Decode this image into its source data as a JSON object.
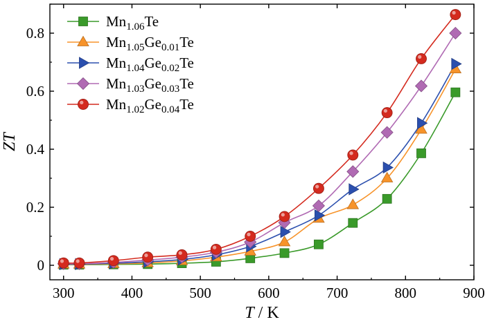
{
  "chart_data": {
    "type": "line",
    "xlabel": {
      "var": "T",
      "sep": " / ",
      "unit": "K"
    },
    "ylabel": "ZT",
    "xlim": [
      280,
      900
    ],
    "ylim": [
      -0.05,
      0.9
    ],
    "xticks": [
      300,
      400,
      500,
      600,
      700,
      800,
      900
    ],
    "yticks": [
      0,
      0.2,
      0.4,
      0.6,
      0.8
    ],
    "legend_position": "top-left",
    "grid": false,
    "series": [
      {
        "name": "Mn1.06Te",
        "name_parts": [
          [
            "Mn",
            "n"
          ],
          [
            "1.06",
            "s"
          ],
          [
            "Te",
            "n"
          ]
        ],
        "color": "#3a9a2a",
        "marker": "square",
        "x": [
          300,
          323,
          373,
          423,
          473,
          523,
          573,
          623,
          673,
          723,
          773,
          823,
          873
        ],
        "y": [
          0.002,
          0.002,
          0.003,
          0.004,
          0.007,
          0.012,
          0.024,
          0.042,
          0.072,
          0.146,
          0.229,
          0.386,
          0.596
        ]
      },
      {
        "name": "Mn1.05Ge0.01Te",
        "name_parts": [
          [
            "Mn",
            "n"
          ],
          [
            "1.05",
            "s"
          ],
          [
            "Ge",
            "n"
          ],
          [
            "0.01",
            "s"
          ],
          [
            "Te",
            "n"
          ]
        ],
        "color": "#f7932a",
        "marker": "triangle-up",
        "x": [
          300,
          323,
          373,
          423,
          473,
          523,
          573,
          623,
          673,
          723,
          773,
          823,
          873
        ],
        "y": [
          0.003,
          0.003,
          0.005,
          0.008,
          0.015,
          0.028,
          0.048,
          0.08,
          0.161,
          0.208,
          0.3,
          0.468,
          0.676
        ]
      },
      {
        "name": "Mn1.04Ge0.02Te",
        "name_parts": [
          [
            "Mn",
            "n"
          ],
          [
            "1.04",
            "s"
          ],
          [
            "Ge",
            "n"
          ],
          [
            "0.02",
            "s"
          ],
          [
            "Te",
            "n"
          ]
        ],
        "color": "#2b4fae",
        "marker": "triangle-right",
        "x": [
          300,
          323,
          373,
          423,
          473,
          523,
          573,
          623,
          673,
          723,
          773,
          823,
          873
        ],
        "y": [
          0.004,
          0.004,
          0.007,
          0.012,
          0.02,
          0.036,
          0.065,
          0.115,
          0.172,
          0.262,
          0.337,
          0.49,
          0.694
        ]
      },
      {
        "name": "Mn1.03Ge0.03Te",
        "name_parts": [
          [
            "Mn",
            "n"
          ],
          [
            "1.03",
            "s"
          ],
          [
            "Ge",
            "n"
          ],
          [
            "0.03",
            "s"
          ],
          [
            "Te",
            "n"
          ]
        ],
        "color": "#b06ab3",
        "marker": "diamond",
        "x": [
          300,
          323,
          373,
          423,
          473,
          523,
          573,
          623,
          673,
          723,
          773,
          823,
          873
        ],
        "y": [
          0.005,
          0.005,
          0.01,
          0.018,
          0.028,
          0.045,
          0.08,
          0.147,
          0.205,
          0.323,
          0.458,
          0.618,
          0.8
        ]
      },
      {
        "name": "Mn1.02Ge0.04Te",
        "name_parts": [
          [
            "Mn",
            "n"
          ],
          [
            "1.02",
            "s"
          ],
          [
            "Ge",
            "n"
          ],
          [
            "0.04",
            "s"
          ],
          [
            "Te",
            "n"
          ]
        ],
        "color": "#d42a1e",
        "marker": "circle",
        "x": [
          300,
          323,
          373,
          423,
          473,
          523,
          573,
          623,
          673,
          723,
          773,
          823,
          873
        ],
        "y": [
          0.008,
          0.008,
          0.016,
          0.028,
          0.036,
          0.055,
          0.1,
          0.168,
          0.265,
          0.38,
          0.526,
          0.712,
          0.864
        ]
      }
    ]
  }
}
